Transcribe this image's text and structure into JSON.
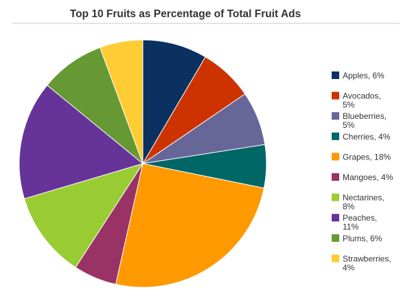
{
  "chart_data": {
    "type": "pie",
    "title": "Top 10 Fruits as Percentage of Total Fruit Ads",
    "legend_position": "right",
    "slice_direction": "clockwise-from-top",
    "slices": [
      {
        "label": "Apples",
        "legend_lines": [
          "Apples, 6%"
        ],
        "percent": 6,
        "color": "#0b3161"
      },
      {
        "label": "Avocados",
        "legend_lines": [
          "Avocados,",
          "5%"
        ],
        "percent": 5,
        "color": "#cc3300"
      },
      {
        "label": "Blueberries",
        "legend_lines": [
          "Blueberries,",
          "5%"
        ],
        "percent": 5,
        "color": "#666699"
      },
      {
        "label": "Cherries",
        "legend_lines": [
          "Cherries, 4%"
        ],
        "percent": 4,
        "color": "#006666"
      },
      {
        "label": "Grapes",
        "legend_lines": [
          "Grapes, 18%"
        ],
        "percent": 18,
        "color": "#ff9900"
      },
      {
        "label": "Mangoes",
        "legend_lines": [
          "Mangoes, 4%"
        ],
        "percent": 4,
        "color": "#993366"
      },
      {
        "label": "Nectarines",
        "legend_lines": [
          "Nectarines,",
          "8%"
        ],
        "percent": 8,
        "color": "#99cc33"
      },
      {
        "label": "Peaches",
        "legend_lines": [
          "Peaches,",
          "11%"
        ],
        "percent": 11,
        "color": "#663399"
      },
      {
        "label": "Plums",
        "legend_lines": [
          "Plums, 6%"
        ],
        "percent": 6,
        "color": "#669933"
      },
      {
        "label": "Strawberries",
        "legend_lines": [
          "Strawberries,",
          "4%"
        ],
        "percent": 4,
        "color": "#ffcc33"
      }
    ]
  }
}
